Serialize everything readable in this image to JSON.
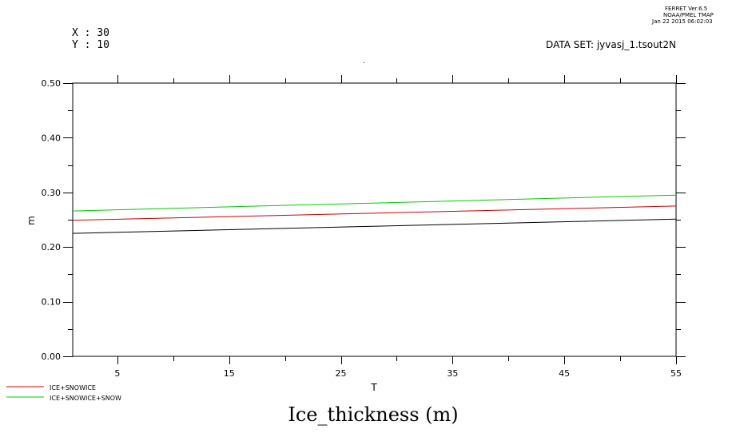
{
  "header": {
    "program": "FERRET  Ver.6.5",
    "org": "NOAA/PMEL TMAP",
    "date": "Jan 22 2015 06:02:03",
    "x_label": "X : 30",
    "y_label": "Y : 10",
    "dataset": "DATA SET: jyvasj_1.tsout2N"
  },
  "chart_data": {
    "type": "line",
    "title": "Ice_thickness (m)",
    "xlabel": "T",
    "ylabel": "m",
    "xlim": [
      1,
      55
    ],
    "ylim": [
      0,
      0.5
    ],
    "x_ticks": [
      5,
      15,
      25,
      35,
      45,
      55
    ],
    "y_ticks": [
      0.0,
      0.1,
      0.2,
      0.3,
      0.4,
      0.5
    ],
    "y_tick_labels": [
      "0.00",
      "0.10",
      "0.20",
      "0.30",
      "0.40",
      "0.50"
    ],
    "series": [
      {
        "values_x": [
          1,
          55
        ],
        "values_y": [
          0.225,
          0.251
        ],
        "color": "#000000"
      },
      {
        "name": "ICE+SNOWICE",
        "values_x": [
          1,
          55
        ],
        "values_y": [
          0.249,
          0.275
        ],
        "color": "#cc0000"
      },
      {
        "name": "ICE+SNOWICE+SNOW",
        "values_x": [
          1,
          55
        ],
        "values_y": [
          0.266,
          0.295
        ],
        "color": "#00cc00"
      }
    ],
    "legend_placement": "bottom-left"
  }
}
